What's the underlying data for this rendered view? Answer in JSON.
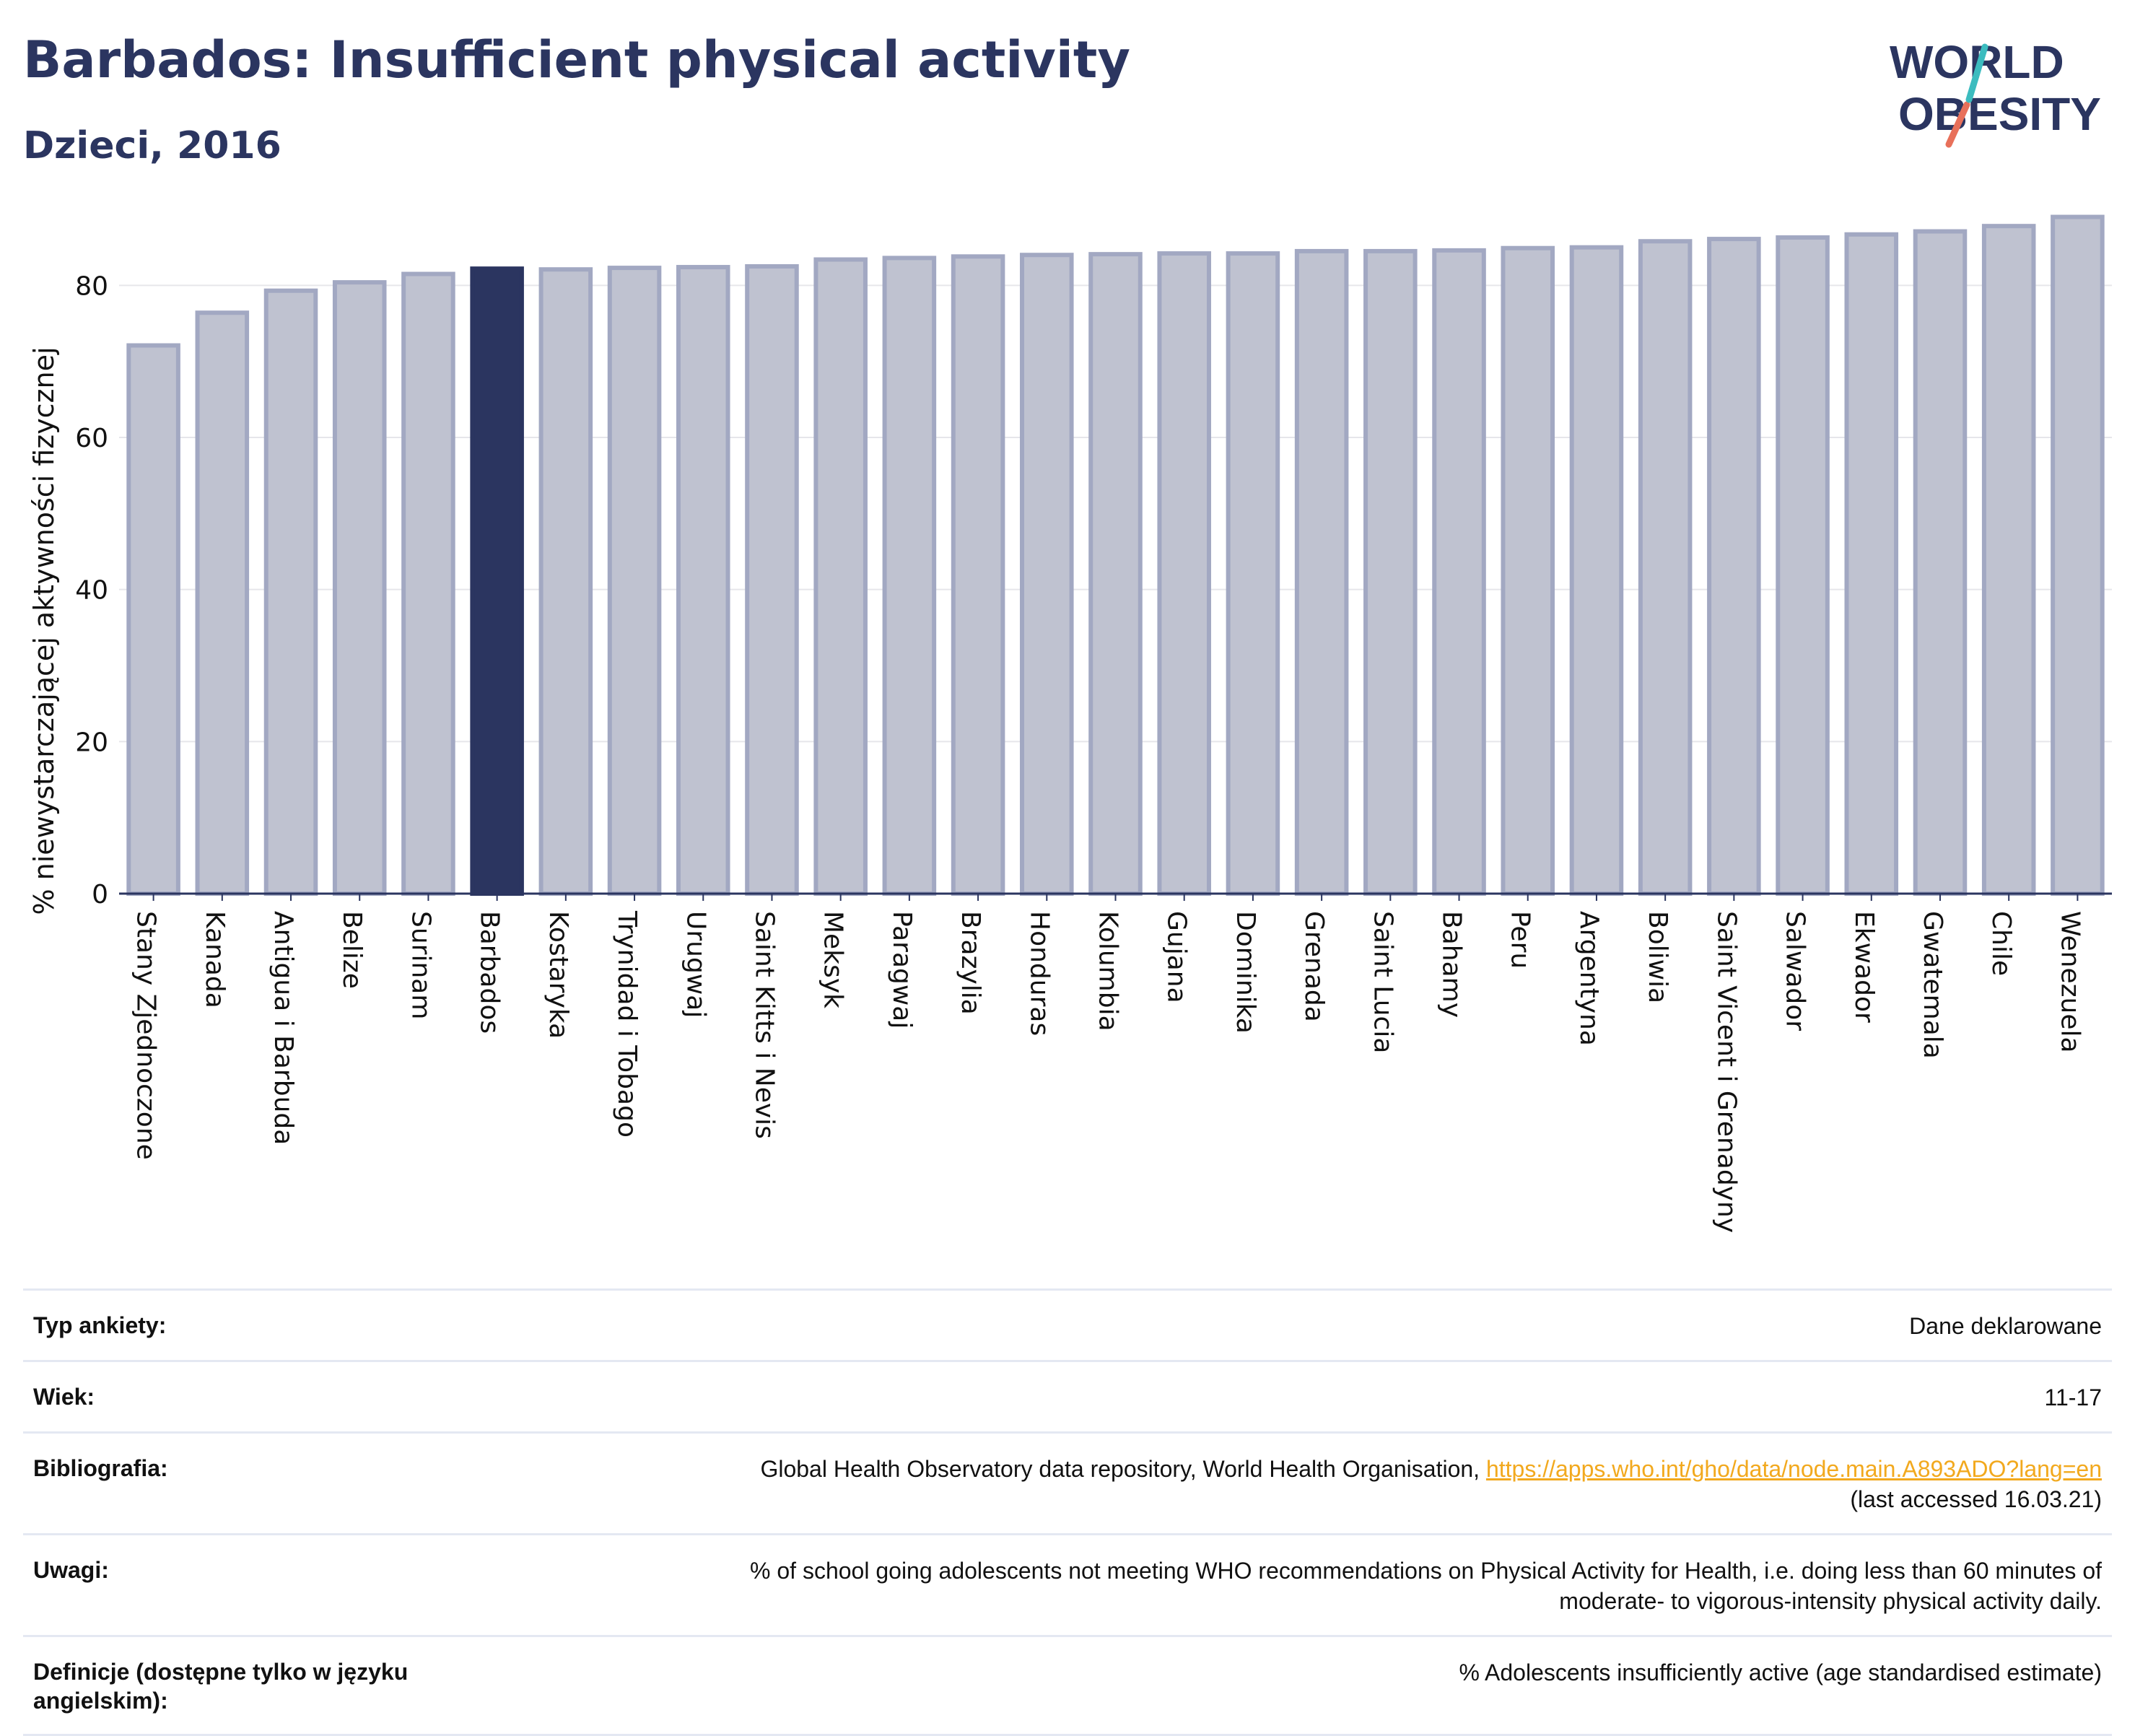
{
  "header": {
    "title": "Barbados: Insufficient physical activity",
    "subtitle": "Dzieci, 2016"
  },
  "logo": {
    "line1": "WORLD",
    "line2": "OBESITY"
  },
  "colors": {
    "highlight": "#2b3560",
    "bar": "#bfc2d0",
    "bar_edge": "#a2a8c2",
    "grid": "#e6e6ea",
    "link": "#f2a91e"
  },
  "chart_data": {
    "type": "bar",
    "title": "Barbados: Insufficient physical activity",
    "subtitle": "Dzieci, 2016",
    "ylabel": "% niewystarczającej aktywności fizycznej",
    "xlabel": "",
    "ylim": [
      0,
      90
    ],
    "yticks": [
      0,
      20,
      40,
      60,
      80
    ],
    "grid": true,
    "highlight": "Barbados",
    "categories": [
      "Stany Zjednoczone",
      "Kanada",
      "Antigua i Barbuda",
      "Belize",
      "Surinam",
      "Barbados",
      "Kostaryka",
      "Trynidad i Tobago",
      "Urugwaj",
      "Saint Kitts i Nevis",
      "Meksyk",
      "Paragwaj",
      "Brazylia",
      "Honduras",
      "Kolumbia",
      "Gujana",
      "Dominika",
      "Grenada",
      "Saint Lucia",
      "Bahamy",
      "Peru",
      "Argentyna",
      "Boliwia",
      "Saint Vicent i Grenadyny",
      "Salwador",
      "Ekwador",
      "Gwatemala",
      "Chile",
      "Wenezuela"
    ],
    "values": [
      72.1,
      76.4,
      79.3,
      80.4,
      81.5,
      82.2,
      82.1,
      82.3,
      82.4,
      82.5,
      83.4,
      83.6,
      83.8,
      84.0,
      84.1,
      84.2,
      84.2,
      84.5,
      84.5,
      84.6,
      84.9,
      85.0,
      85.8,
      86.1,
      86.3,
      86.7,
      87.1,
      87.8,
      89.0
    ]
  },
  "info": {
    "rows": [
      {
        "label": "Typ ankiety:",
        "value": "Dane deklarowane"
      },
      {
        "label": "Wiek:",
        "value": "11-17"
      },
      {
        "label": "Bibliografia:",
        "value_prefix": "Global Health Observatory data repository, World Health Organisation, ",
        "link": "https://apps.who.int/gho/data/node.main.A893ADO?lang=en",
        "value_suffix": "(last accessed 16.03.21)"
      },
      {
        "label": "Uwagi:",
        "value_line1": "% of school going adolescents not meeting WHO recommendations on Physical Activity for Health, i.e. doing less than 60 minutes of",
        "value_line2": "moderate- to vigorous-intensity physical activity daily."
      },
      {
        "label_line1": "Definicje (dostępne tylko w języku",
        "label_line2": "angielskim):",
        "value": "% Adolescents insufficiently active (age standardised estimate)"
      }
    ]
  }
}
